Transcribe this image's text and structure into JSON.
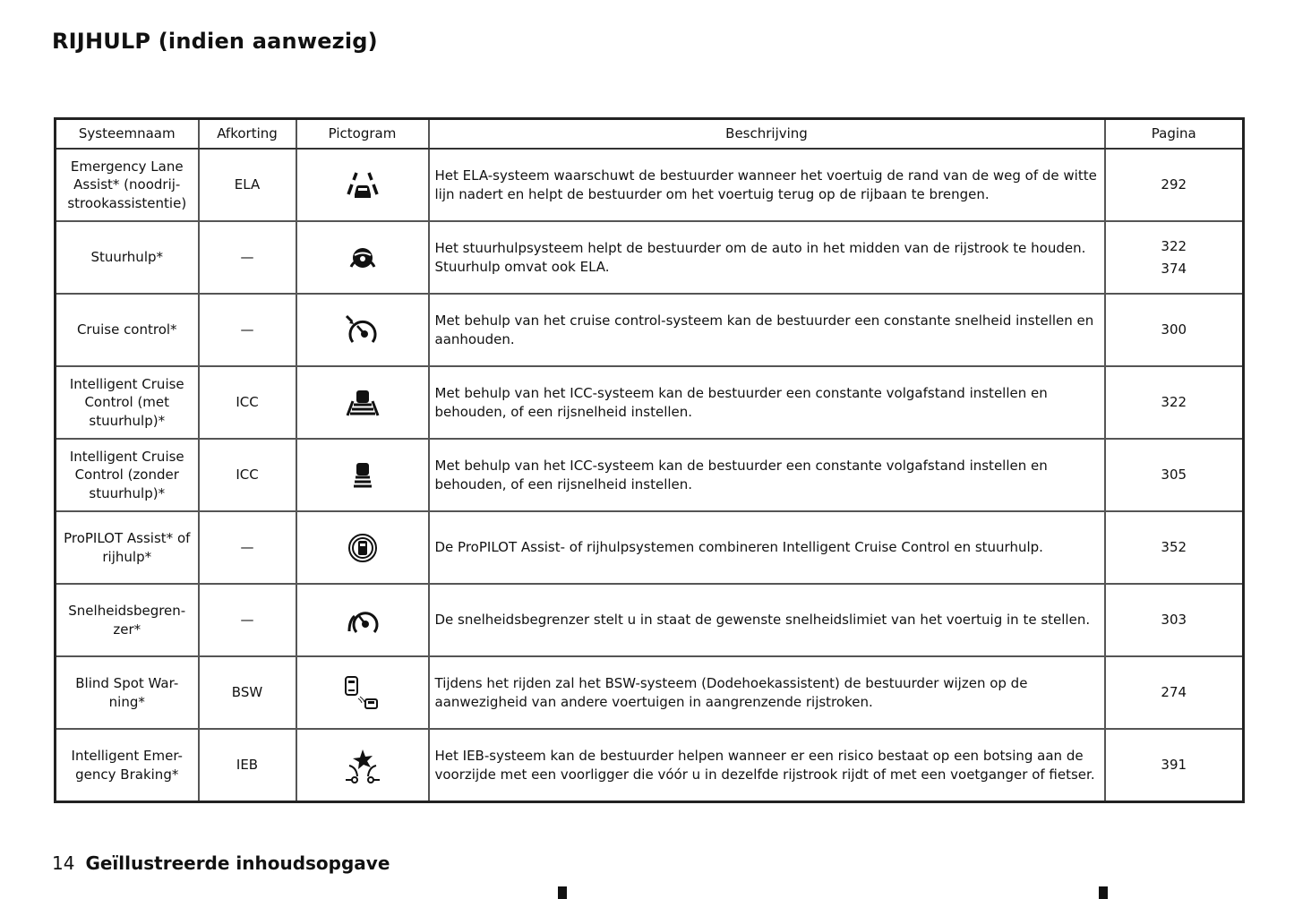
{
  "page_title": "RIJHULP (indien aanwezig)",
  "table": {
    "headers": [
      "Systeemnaam",
      "Afkorting",
      "Pictogram",
      "Beschrijving",
      "Pagina"
    ],
    "rows": [
      {
        "name": "Emergency Lane Assist* (noodrij-strookassistentie)",
        "abbr": "ELA",
        "icon": "lane-departure-icon",
        "desc": "Het ELA-systeem waarschuwt de bestuurder wanneer het voertuig de rand van de weg of de witte lijn nadert en helpt de bestuurder om het voertuig terug op de rijbaan te brengen.",
        "pages": [
          "292"
        ]
      },
      {
        "name": "Stuurhulp*",
        "abbr": "—",
        "icon": "steering-assist-icon",
        "desc": "Het stuurhulpsysteem helpt de bestuurder om de auto in het midden van de rijstrook te houden. Stuurhulp omvat ook ELA.",
        "pages": [
          "322",
          "374"
        ]
      },
      {
        "name": "Cruise control*",
        "abbr": "—",
        "icon": "cruise-control-icon",
        "desc": "Met behulp van het cruise control-systeem kan de bestuurder een constante snelheid instellen en aanhouden.",
        "pages": [
          "300"
        ]
      },
      {
        "name": "Intelligent Cruise Control (met stuurhulp)*",
        "abbr": "ICC",
        "icon": "icc-lane-icon",
        "desc": "Met behulp van het ICC-systeem kan de bestuurder een constante volgafstand instellen en behouden, of een rijsnelheid instellen.",
        "pages": [
          "322"
        ]
      },
      {
        "name": "Intelligent Cruise Control (zonder stuurhulp)*",
        "abbr": "ICC",
        "icon": "icc-icon",
        "desc": "Met behulp van het ICC-systeem kan de bestuurder een constante volgafstand instellen en behouden, of een rijsnelheid instellen.",
        "pages": [
          "305"
        ]
      },
      {
        "name": "ProPILOT Assist* of rijhulp*",
        "abbr": "—",
        "icon": "propilot-icon",
        "desc": "De ProPILOT Assist- of rijhulpsystemen combineren Intelligent Cruise Control en stuurhulp.",
        "pages": [
          "352"
        ]
      },
      {
        "name": "Snelheidsbegren-zer*",
        "abbr": "—",
        "icon": "speed-limiter-icon",
        "desc": "De snelheidsbegrenzer stelt u in staat de gewenste snelheidslimiet van het voertuig in te stellen.",
        "pages": [
          "303"
        ]
      },
      {
        "name": "Blind Spot War-ning*",
        "abbr": "BSW",
        "icon": "blind-spot-icon",
        "desc": "Tijdens het rijden zal het BSW-systeem (Dodehoekassistent) de bestuurder wijzen op de aanwezigheid van andere voertuigen in aangrenzende rijstroken.",
        "pages": [
          "274"
        ]
      },
      {
        "name": "Intelligent Emer-gency Braking*",
        "abbr": "IEB",
        "icon": "emergency-braking-icon",
        "desc": "Het IEB-systeem kan de bestuurder helpen wanneer er een risico bestaat op een botsing aan de voorzijde met een voorligger die vóór u in dezelfde rijstrook rijdt of met een voetganger of fietser.",
        "pages": [
          "391"
        ]
      }
    ]
  },
  "footer": {
    "page_number": "14",
    "section": "Geïllustreerde inhoudsopgave"
  }
}
